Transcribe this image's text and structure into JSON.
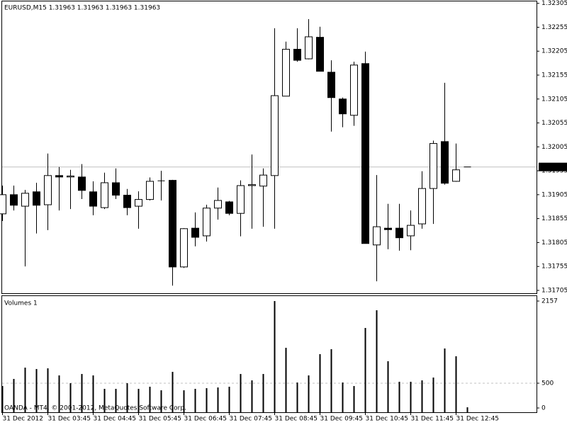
{
  "header": "EURUSD,M15  1.31963 1.31963 1.31963 1.31963",
  "copyright": "OANDA - MT4, © 2001-2012, MetaQuotes Software Corp.",
  "chart_data": [
    {
      "type": "candlestick",
      "categories": [
        "31 Dec 2012",
        null,
        null,
        null,
        "31 Dec 03:45",
        null,
        null,
        null,
        "31 Dec 04:45",
        null,
        null,
        null,
        "31 Dec 05:45",
        null,
        null,
        null,
        "31 Dec 06:45",
        null,
        null,
        null,
        "31 Dec 07:45",
        null,
        null,
        null,
        "31 Dec 08:45",
        null,
        null,
        null,
        "31 Dec 09:45",
        null,
        null,
        null,
        "31 Dec 10:45",
        null,
        null,
        null,
        "31 Dec 11:45",
        null,
        null,
        null,
        "31 Dec 12:45",
        null
      ],
      "open": [
        1.31865,
        1.31905,
        1.31881,
        1.31911,
        1.31884,
        1.31945,
        1.31942,
        1.31942,
        1.31911,
        1.31878,
        1.3193,
        1.31904,
        1.31881,
        1.31895,
        1.31935,
        1.31935,
        1.31754,
        1.31835,
        1.31819,
        1.31877,
        1.3189,
        1.31866,
        1.31924,
        1.31923,
        1.31945,
        1.32111,
        1.32209,
        1.32189,
        1.32234,
        1.32161,
        1.32105,
        1.32071,
        1.32179,
        1.318,
        1.31835,
        1.31835,
        1.31819,
        1.31844,
        1.31918,
        1.32016,
        1.31933,
        1.31963
      ],
      "high": [
        1.31924,
        1.31924,
        1.31915,
        1.3193,
        1.31991,
        1.31963,
        1.31957,
        1.31969,
        1.31933,
        1.31951,
        1.3196,
        1.31917,
        1.31912,
        1.31941,
        1.31955,
        1.31936,
        1.31835,
        1.31868,
        1.31884,
        1.3192,
        1.31892,
        1.31935,
        1.31989,
        1.3196,
        1.32253,
        1.32225,
        1.32253,
        1.32272,
        1.32256,
        1.32186,
        1.32108,
        1.32183,
        1.32204,
        1.31946,
        1.31886,
        1.31886,
        1.31872,
        1.31954,
        1.32018,
        1.32139,
        1.32012,
        1.31963
      ],
      "low": [
        1.3185,
        1.31872,
        1.31755,
        1.31824,
        1.31831,
        1.31872,
        1.31875,
        1.31896,
        1.31862,
        1.31875,
        1.31896,
        1.31862,
        1.31834,
        1.31893,
        1.31893,
        1.31715,
        1.31752,
        1.31797,
        1.31807,
        1.31853,
        1.31862,
        1.31818,
        1.31834,
        1.31838,
        1.31834,
        1.32111,
        1.32183,
        1.32188,
        1.32163,
        1.32037,
        1.32046,
        1.32049,
        1.31803,
        1.31724,
        1.31791,
        1.31788,
        1.31789,
        1.31834,
        1.31844,
        1.31926,
        1.31932,
        1.31963
      ],
      "close": [
        1.31905,
        1.31883,
        1.31908,
        1.31883,
        1.31945,
        1.31942,
        1.31944,
        1.31914,
        1.31881,
        1.3193,
        1.31904,
        1.31878,
        1.31895,
        1.31933,
        1.31934,
        1.31754,
        1.31834,
        1.31816,
        1.31877,
        1.31893,
        1.31866,
        1.31924,
        1.31926,
        1.31946,
        1.32112,
        1.32209,
        1.32186,
        1.32235,
        1.32163,
        1.32108,
        1.32074,
        1.32176,
        1.31803,
        1.31838,
        1.31832,
        1.31815,
        1.31841,
        1.31918,
        1.32012,
        1.31929,
        1.31957,
        1.31963
      ],
      "up_color": "#ffffff",
      "down_color": "#000000",
      "current_price": 1.31963,
      "ylim": [
        1.31699,
        1.32309
      ],
      "yticks": [
        1.32305,
        1.32255,
        1.32205,
        1.32155,
        1.32105,
        1.32055,
        1.32005,
        1.31955,
        1.31905,
        1.31855,
        1.31805,
        1.31755,
        1.31705
      ]
    },
    {
      "type": "bar",
      "title": "Volumes 1",
      "values": [
        443,
        586,
        814,
        786,
        800,
        657,
        500,
        686,
        657,
        386,
        386,
        500,
        386,
        429,
        357,
        729,
        357,
        386,
        400,
        414,
        429,
        686,
        557,
        686,
        2157,
        1214,
        514,
        657,
        1086,
        1186,
        514,
        443,
        1614,
        1971,
        943,
        529,
        529,
        557,
        614,
        1200,
        1043,
        14
      ],
      "color": "#000000",
      "ylim": [
        -86,
        2257
      ],
      "yticks": [
        0,
        500,
        2157
      ],
      "level": 500
    }
  ]
}
